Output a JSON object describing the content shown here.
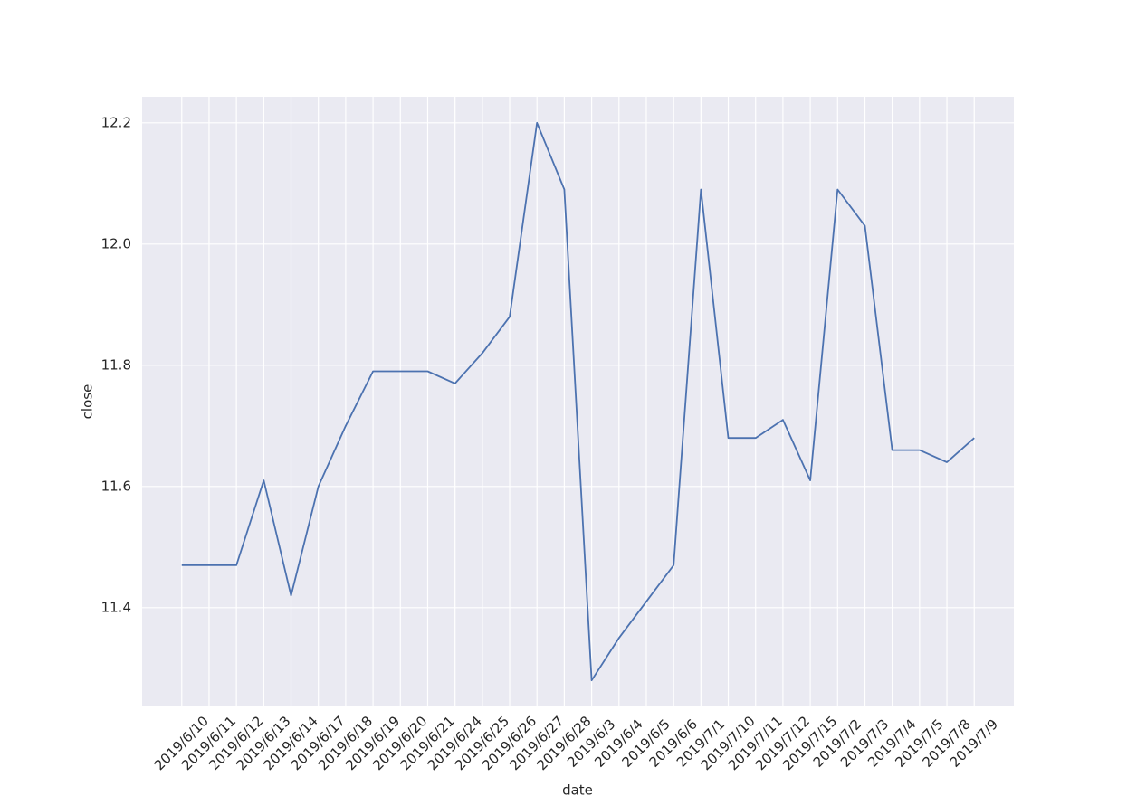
{
  "chart_data": {
    "type": "line",
    "x_label": "date",
    "y_label": "close",
    "categories": [
      "2019/6/10",
      "2019/6/11",
      "2019/6/12",
      "2019/6/13",
      "2019/6/14",
      "2019/6/17",
      "2019/6/18",
      "2019/6/19",
      "2019/6/20",
      "2019/6/21",
      "2019/6/24",
      "2019/6/25",
      "2019/6/26",
      "2019/6/27",
      "2019/6/28",
      "2019/6/3",
      "2019/6/4",
      "2019/6/5",
      "2019/6/6",
      "2019/7/1",
      "2019/7/10",
      "2019/7/11",
      "2019/7/12",
      "2019/7/15",
      "2019/7/2",
      "2019/7/3",
      "2019/7/4",
      "2019/7/5",
      "2019/7/8",
      "2019/7/9"
    ],
    "values": [
      11.47,
      11.47,
      11.47,
      11.61,
      11.42,
      11.6,
      11.7,
      11.79,
      11.79,
      11.79,
      11.77,
      11.82,
      11.88,
      12.2,
      12.09,
      11.28,
      11.35,
      11.41,
      11.47,
      12.09,
      11.68,
      11.68,
      11.71,
      11.61,
      12.09,
      12.03,
      11.66,
      11.66,
      11.64,
      11.68
    ],
    "color": "#4c72b0",
    "ylim": [
      11.237,
      12.243
    ],
    "yticks": [
      11.4,
      11.6,
      11.8,
      {
        "value": 12,
        "label": "12.0"
      },
      12.2
    ],
    "grid": true
  }
}
